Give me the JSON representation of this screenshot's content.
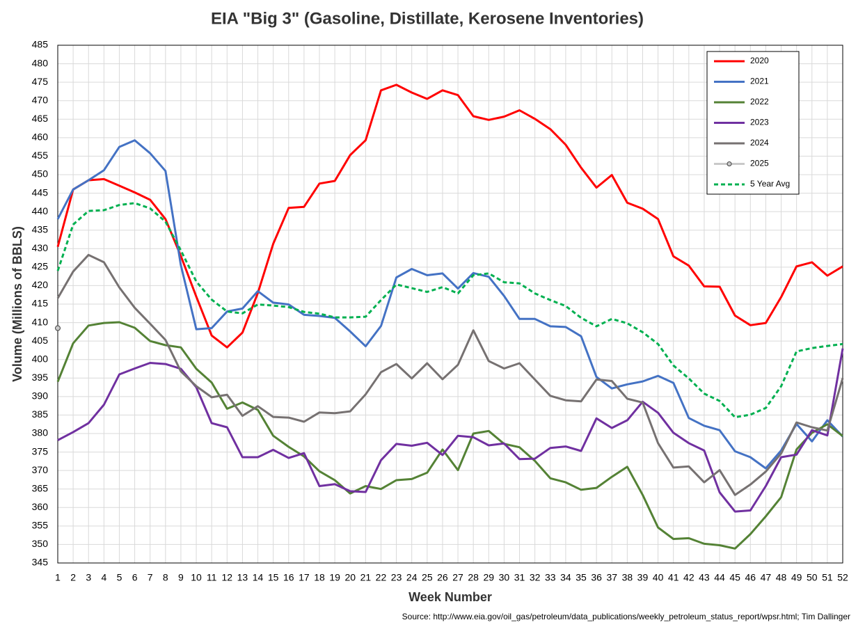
{
  "chart_data": {
    "type": "line",
    "title": "EIA \"Big 3\" (Gasoline, Distillate, Kerosene Inventories)",
    "xlabel": "Week Number",
    "ylabel": "Volume (Millions of BBLS)",
    "source": "Source: http://www.eia.gov/oil_gas/petroleum/data_publications/weekly_petroleum_status_report/wpsr.html; Tim Dallinger",
    "x": [
      1,
      2,
      3,
      4,
      5,
      6,
      7,
      8,
      9,
      10,
      11,
      12,
      13,
      14,
      15,
      16,
      17,
      18,
      19,
      20,
      21,
      22,
      23,
      24,
      25,
      26,
      27,
      28,
      29,
      30,
      31,
      32,
      33,
      34,
      35,
      36,
      37,
      38,
      39,
      40,
      41,
      42,
      43,
      44,
      45,
      46,
      47,
      48,
      49,
      50,
      51,
      52
    ],
    "xlim": [
      1,
      52
    ],
    "xticks": [
      1,
      2,
      3,
      4,
      5,
      6,
      7,
      8,
      9,
      10,
      11,
      12,
      13,
      14,
      15,
      16,
      17,
      18,
      19,
      20,
      21,
      22,
      23,
      24,
      25,
      26,
      27,
      28,
      29,
      30,
      31,
      32,
      33,
      34,
      35,
      36,
      37,
      38,
      39,
      40,
      41,
      42,
      43,
      44,
      45,
      46,
      47,
      48,
      49,
      50,
      51,
      52
    ],
    "ylim": [
      345,
      485
    ],
    "yticks": [
      345,
      350,
      355,
      360,
      365,
      370,
      375,
      380,
      385,
      390,
      395,
      400,
      405,
      410,
      415,
      420,
      425,
      430,
      435,
      440,
      445,
      450,
      455,
      460,
      465,
      470,
      475,
      480,
      485
    ],
    "grid": true,
    "legend": "upper right",
    "series": [
      {
        "name": "2020",
        "color": "#ff0000",
        "values": [
          430.5,
          446,
          448.5,
          448.8,
          447,
          445.2,
          443.2,
          438,
          428,
          417,
          406.5,
          403.3,
          407.3,
          418,
          431.3,
          441,
          441.3,
          447.6,
          448.3,
          455.3,
          459.3,
          472.8,
          474.3,
          472.2,
          470.5,
          472.8,
          471.5,
          465.8,
          464.8,
          465.7,
          467.4,
          465.1,
          462.3,
          458.1,
          451.9,
          446.5,
          449.9,
          442.4,
          440.8,
          438,
          427.9,
          425.4,
          419.8,
          419.7,
          411.9,
          409.3,
          409.9,
          416.9,
          425.2,
          426.3,
          422.7,
          425.2
        ]
      },
      {
        "name": "2021",
        "color": "#4472c4",
        "values": [
          438,
          446,
          448.5,
          451.2,
          457.5,
          459.3,
          455.8,
          451,
          425.5,
          408.2,
          408.5,
          413,
          413.8,
          418.5,
          415.4,
          414.9,
          412.1,
          411.8,
          411.3,
          407.6,
          403.6,
          409.1,
          422.2,
          424.5,
          422.8,
          423.3,
          419.2,
          423.4,
          422.4,
          417.2,
          411,
          411,
          409,
          408.8,
          406.3,
          395.3,
          392.2,
          393.3,
          394.1,
          395.6,
          393.7,
          384.2,
          382.1,
          380.9,
          375.2,
          373.6,
          370.6,
          375.4,
          382.6,
          377.9,
          383.6,
          379.2
        ]
      },
      {
        "name": "2022",
        "color": "#548235",
        "values": [
          394,
          404.4,
          409.2,
          409.9,
          410.1,
          408.6,
          405,
          403.9,
          403.3,
          397.5,
          393.8,
          386.7,
          388.4,
          386.4,
          379.4,
          376.4,
          373.8,
          369.8,
          367.4,
          363.8,
          365.8,
          365,
          367.4,
          367.7,
          369.4,
          375.7,
          370.1,
          380,
          380.7,
          377.2,
          376.3,
          372.6,
          367.9,
          366.8,
          364.8,
          365.3,
          368.3,
          371,
          363.4,
          354.6,
          351.5,
          351.7,
          350.2,
          349.8,
          348.9,
          352.8,
          357.6,
          362.8,
          375.7,
          380.2,
          382.5,
          379.3
        ]
      },
      {
        "name": "2023",
        "color": "#7030a0",
        "values": [
          378.2,
          380.4,
          382.8,
          387.8,
          396,
          397.6,
          399.1,
          398.8,
          397.5,
          392.5,
          382.8,
          381.7,
          373.6,
          373.6,
          375.6,
          373.4,
          374.7,
          365.8,
          366.3,
          364.4,
          364.2,
          372.8,
          377.2,
          376.7,
          377.5,
          374.2,
          379.4,
          379,
          376.8,
          377.3,
          373.1,
          373.2,
          376.1,
          376.5,
          375.3,
          384.1,
          381.5,
          383.6,
          388.6,
          385.6,
          380.2,
          377.4,
          375.4,
          364.1,
          358.9,
          359.2,
          365.8,
          373.6,
          374.3,
          380.9,
          379.5,
          403
        ]
      },
      {
        "name": "2024",
        "color": "#767171",
        "values": [
          416.6,
          423.8,
          428.3,
          426.3,
          419.5,
          414,
          409.7,
          405.3,
          396.8,
          392.8,
          389.8,
          390.5,
          384.8,
          387.4,
          384.5,
          384.3,
          383.2,
          385.7,
          385.5,
          386,
          390.6,
          396.6,
          398.8,
          394.9,
          399,
          394.7,
          398.6,
          407.9,
          399.6,
          397.6,
          399,
          394.6,
          390.2,
          389,
          388.7,
          394.6,
          394.2,
          389.4,
          388.4,
          377.4,
          370.8,
          371.1,
          366.8,
          370.1,
          363.4,
          366.2,
          369.7,
          374.6,
          383,
          381.7,
          380.8,
          395
        ]
      },
      {
        "name": "2025",
        "color": "#c9c9c9",
        "marker": true,
        "values": [
          408.5,
          null,
          null,
          null,
          null,
          null,
          null,
          null,
          null,
          null,
          null,
          null,
          null,
          null,
          null,
          null,
          null,
          null,
          null,
          null,
          null,
          null,
          null,
          null,
          null,
          null,
          null,
          null,
          null,
          null,
          null,
          null,
          null,
          null,
          null,
          null,
          null,
          null,
          null,
          null,
          null,
          null,
          null,
          null,
          null,
          null,
          null,
          null,
          null,
          null,
          null,
          null
        ]
      },
      {
        "name": "5 Year Avg",
        "color": "#00b050",
        "dashed": true,
        "values": [
          424,
          436.5,
          440.2,
          440.4,
          441.8,
          442.3,
          440.9,
          437.3,
          429.5,
          421.1,
          416.2,
          413,
          412.5,
          414.9,
          414.6,
          414.2,
          412.9,
          412.4,
          411.4,
          411.4,
          411.6,
          416.1,
          420.3,
          419.3,
          418.3,
          419.6,
          417.9,
          422.8,
          423.3,
          420.9,
          420.6,
          417.9,
          416.1,
          414.5,
          411.3,
          409,
          411,
          409.8,
          407.4,
          404.2,
          398.4,
          394.9,
          390.8,
          388.8,
          384.4,
          385.1,
          386.9,
          392.8,
          402.2,
          403.1,
          403.7,
          404.2
        ]
      }
    ]
  }
}
